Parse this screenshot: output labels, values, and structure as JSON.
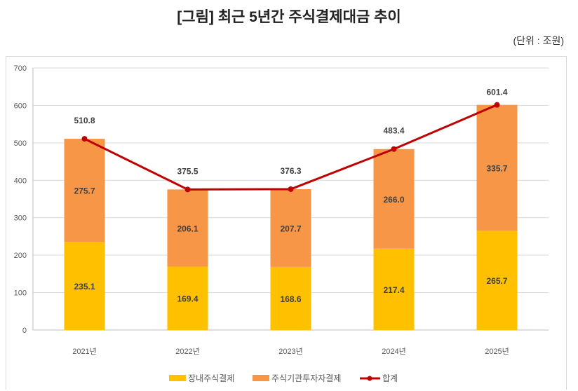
{
  "chart_data": {
    "type": "bar",
    "stacked": true,
    "title": "[그림] 최근 5년간 주식결제대금 추이",
    "unit": "(단위 : 조원)",
    "categories": [
      "2021년",
      "2022년",
      "2023년",
      "2024년",
      "2025년"
    ],
    "series": [
      {
        "name": "장내주식결제",
        "type": "bar",
        "color": "#FFC000",
        "values": [
          235.1,
          169.4,
          168.6,
          217.4,
          265.7
        ]
      },
      {
        "name": "주식기관투자자결제",
        "type": "bar",
        "color": "#F79646",
        "values": [
          275.7,
          206.1,
          207.7,
          266.0,
          335.7
        ]
      },
      {
        "name": "합계",
        "type": "line",
        "color": "#C00000",
        "values": [
          510.8,
          375.5,
          376.3,
          483.4,
          601.4
        ]
      }
    ],
    "ylim": [
      0,
      700
    ],
    "yticks": [
      0,
      100,
      200,
      300,
      400,
      500,
      600,
      700
    ],
    "grid": true,
    "legend": "bottom"
  }
}
